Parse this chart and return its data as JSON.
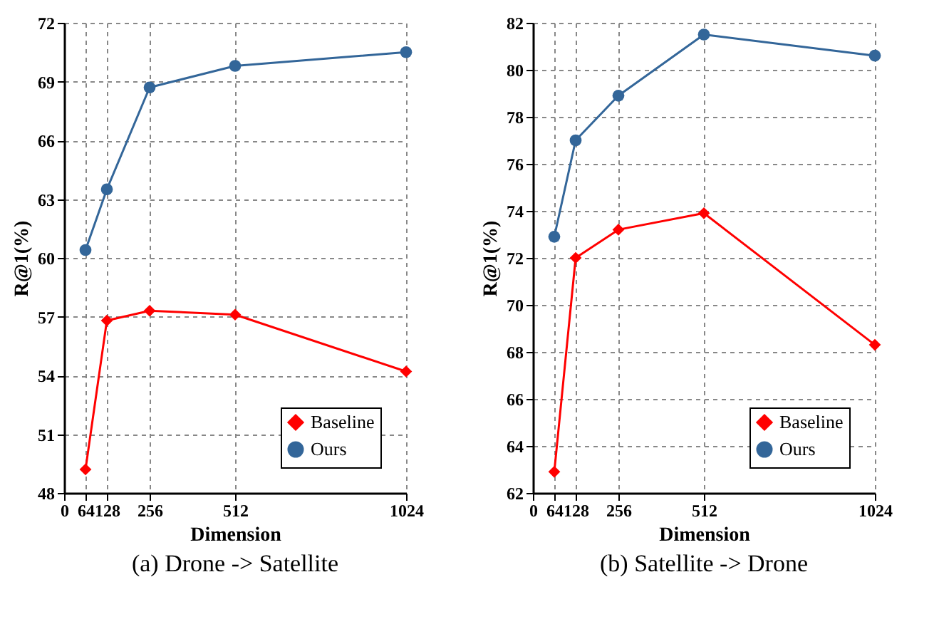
{
  "chart_data": [
    {
      "type": "line",
      "title": "(a) Drone -> Satellite",
      "xlabel": "Dimension",
      "ylabel": "R@1(%)",
      "x": [
        64,
        128,
        256,
        512,
        1024
      ],
      "xlim": [
        0,
        1024
      ],
      "xticks": [
        0,
        64,
        128,
        256,
        512,
        1024
      ],
      "ylim": [
        48,
        72
      ],
      "yticks": [
        48,
        51,
        54,
        57,
        60,
        63,
        66,
        69,
        72
      ],
      "grid": true,
      "legend": "bottom right",
      "series": [
        {
          "name": "Baseline",
          "color": "#ff0000",
          "marker": "diamond",
          "values": [
            49.2,
            56.8,
            57.3,
            57.1,
            54.2
          ]
        },
        {
          "name": "Ours",
          "color": "#336699",
          "marker": "circle",
          "values": [
            60.4,
            63.5,
            68.7,
            69.8,
            70.5
          ]
        }
      ]
    },
    {
      "type": "line",
      "title": "(b) Satellite -> Drone",
      "xlabel": "Dimension",
      "ylabel": "R@1(%)",
      "x": [
        64,
        128,
        256,
        512,
        1024
      ],
      "xlim": [
        0,
        1024
      ],
      "xticks": [
        0,
        64,
        128,
        256,
        512,
        1024
      ],
      "ylim": [
        62,
        82
      ],
      "yticks": [
        62,
        64,
        66,
        68,
        70,
        72,
        74,
        76,
        78,
        80,
        82
      ],
      "grid": true,
      "legend": "bottom right",
      "series": [
        {
          "name": "Baseline",
          "color": "#ff0000",
          "marker": "diamond",
          "values": [
            62.9,
            72.0,
            73.2,
            73.9,
            68.3
          ]
        },
        {
          "name": "Ours",
          "color": "#336699",
          "marker": "circle",
          "values": [
            72.9,
            77.0,
            78.9,
            81.5,
            80.6
          ]
        }
      ]
    }
  ]
}
